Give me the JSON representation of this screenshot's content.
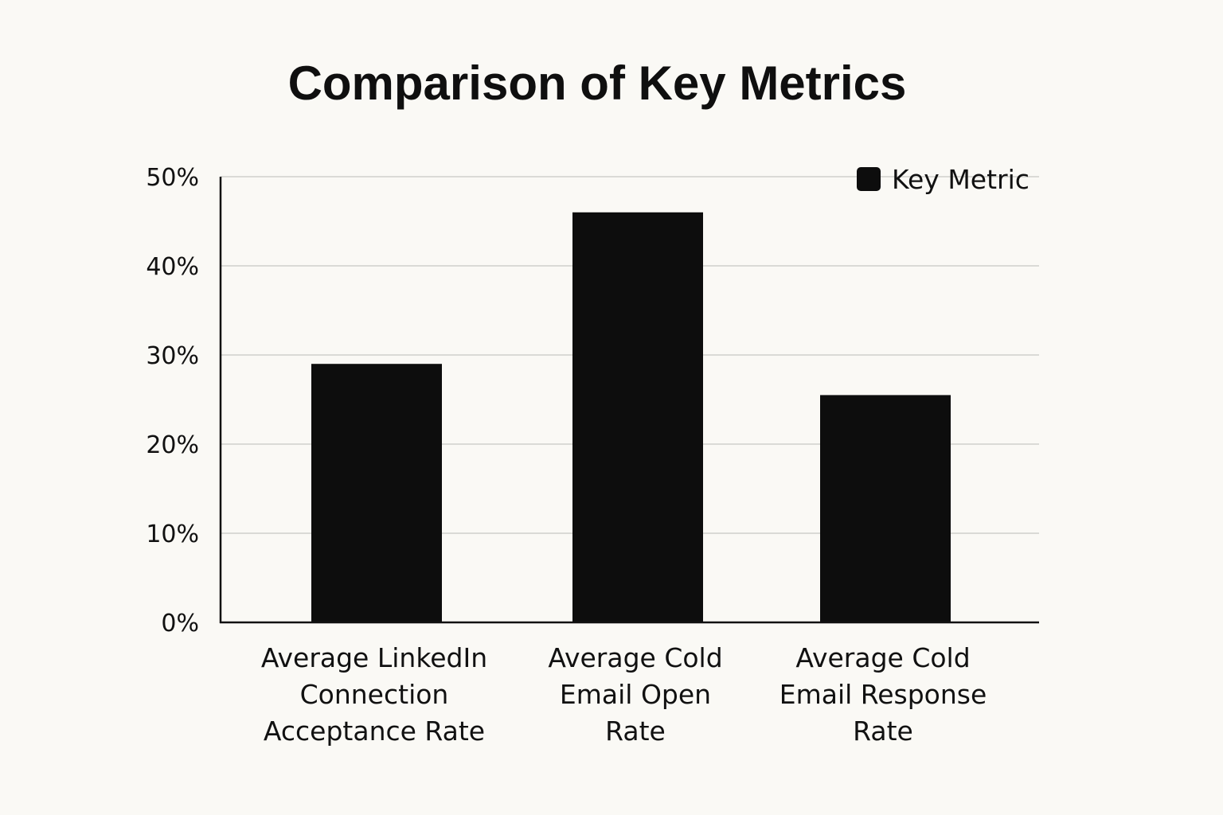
{
  "chart_data": {
    "type": "bar",
    "title": "Comparison of Key Metrics",
    "xlabel": "",
    "ylabel": "",
    "categories": [
      [
        "Average LinkedIn",
        "Connection",
        "Acceptance Rate"
      ],
      [
        "Average Cold",
        "Email Open",
        "Rate"
      ],
      [
        "Average Cold",
        "Email Response",
        "Rate"
      ]
    ],
    "series": [
      {
        "name": "Key Metric",
        "values": [
          29,
          46,
          25.5
        ]
      }
    ],
    "ylim": [
      0,
      50
    ],
    "yticks": [
      0,
      10,
      20,
      30,
      40,
      50
    ],
    "ytick_labels": [
      "0%",
      "10%",
      "20%",
      "30%",
      "40%",
      "50%"
    ],
    "grid": true,
    "legend_position": "top-right",
    "colors": {
      "bar": "#0d0d0d",
      "grid": "#d0d0cc",
      "axis": "#111111",
      "background": "#faf9f5"
    }
  }
}
